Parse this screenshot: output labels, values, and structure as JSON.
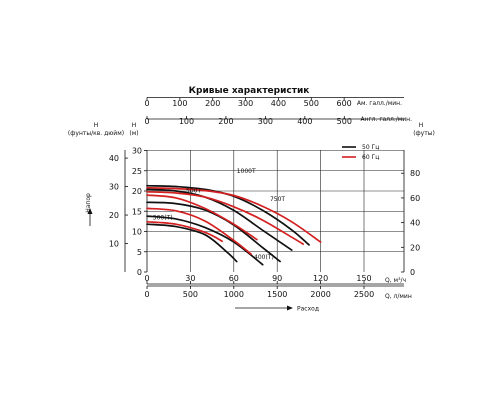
{
  "chart_data": {
    "type": "line",
    "title": "Кривые характеристик",
    "top_axes": [
      {
        "unit": "Ам. галл./мин.",
        "ticks": [
          "0",
          "100",
          "200",
          "300",
          "400",
          "500",
          "600"
        ],
        "values": [
          0,
          100,
          200,
          300,
          400,
          500,
          600
        ]
      },
      {
        "unit": "Англ. галл./мин.",
        "ticks": [
          "0",
          "100",
          "200",
          "300",
          "400",
          "500"
        ],
        "values": [
          0,
          100,
          200,
          300,
          400,
          500
        ]
      }
    ],
    "bottom_axes": [
      {
        "unit": "Q, м³/ч",
        "ticks": [
          "0",
          "30",
          "60",
          "90",
          "120",
          "150"
        ],
        "values": [
          0,
          30,
          60,
          90,
          120,
          150
        ]
      },
      {
        "unit": "Q, л/мин",
        "ticks": [
          "0",
          "500",
          "1000",
          "1500",
          "2000",
          "2500"
        ],
        "values": [
          0,
          500,
          1000,
          1500,
          2000,
          2500
        ]
      }
    ],
    "bottom_caption": "Расход",
    "left_axes": [
      {
        "unit_line1": "H",
        "unit_line2": "(фунты/кв. дюйм)",
        "ticks": [
          "10",
          "20",
          "30",
          "40"
        ],
        "values": [
          10,
          20,
          30,
          40
        ]
      },
      {
        "unit_line1": "H",
        "unit_line2": "(м)",
        "ticks": [
          "0",
          "5",
          "10",
          "15",
          "20",
          "25",
          "30"
        ],
        "values": [
          0,
          5,
          10,
          15,
          20,
          25,
          30
        ]
      }
    ],
    "left_caption": "Напор",
    "right_axis": {
      "unit_line1": "H",
      "unit_line2": "(футы)",
      "ticks": [
        "0",
        "20",
        "40",
        "60",
        "80"
      ],
      "values": [
        0,
        20,
        40,
        60,
        80
      ]
    },
    "legend": {
      "placement": "top-right",
      "items": [
        {
          "label": "50 Гц",
          "color": "#111111"
        },
        {
          "label": "60 Гц",
          "color": "#d42020"
        }
      ]
    },
    "x_unit": "Q, м³/ч",
    "y_unit": "H, м",
    "xlim": [
      0,
      150
    ],
    "ylim": [
      0,
      33
    ],
    "curve_labels": [
      {
        "text": "1000T",
        "x": 62,
        "y": 24.5
      },
      {
        "text": "750T",
        "x": 85,
        "y": 17.5
      },
      {
        "text": "500T",
        "x": 27,
        "y": 19.6
      },
      {
        "text": "300(T)",
        "x": 4,
        "y": 13
      },
      {
        "text": "400(T)",
        "x": 74,
        "y": 3.2
      }
    ],
    "series": [
      {
        "name": "1000T",
        "freq": "50 Гц",
        "color": "#111111",
        "points": [
          [
            0,
            21.3
          ],
          [
            20,
            21.1
          ],
          [
            40,
            20.4
          ],
          [
            60,
            18.7
          ],
          [
            80,
            15.2
          ],
          [
            100,
            10.4
          ],
          [
            112,
            6.7
          ]
        ]
      },
      {
        "name": "1000T",
        "freq": "60 Гц",
        "color": "#d42020",
        "points": [
          [
            0,
            20.8
          ],
          [
            20,
            20.6
          ],
          [
            40,
            20.1
          ],
          [
            60,
            18.9
          ],
          [
            80,
            16.2
          ],
          [
            100,
            12.4
          ],
          [
            120,
            7.4
          ]
        ]
      },
      {
        "name": "750T",
        "freq": "50 Гц",
        "color": "#111111",
        "points": [
          [
            0,
            20.4
          ],
          [
            20,
            20.0
          ],
          [
            40,
            18.5
          ],
          [
            60,
            15.2
          ],
          [
            80,
            10.3
          ],
          [
            100,
            5.4
          ]
        ]
      },
      {
        "name": "750T",
        "freq": "60 Гц",
        "color": "#d42020",
        "points": [
          [
            0,
            19.8
          ],
          [
            20,
            19.5
          ],
          [
            40,
            18.5
          ],
          [
            60,
            16.1
          ],
          [
            80,
            12.8
          ],
          [
            100,
            8.6
          ],
          [
            108,
            6.9
          ]
        ]
      },
      {
        "name": "500T",
        "freq": "50 Гц",
        "color": "#111111",
        "points": [
          [
            0,
            17.2
          ],
          [
            20,
            16.9
          ],
          [
            40,
            15.3
          ],
          [
            60,
            11.6
          ],
          [
            80,
            6.0
          ],
          [
            92,
            2.6
          ]
        ]
      },
      {
        "name": "500T",
        "freq": "60 Гц",
        "color": "#d42020",
        "points": [
          [
            0,
            19.0
          ],
          [
            20,
            18.3
          ],
          [
            40,
            15.7
          ],
          [
            60,
            11.8
          ],
          [
            76,
            8.0
          ]
        ]
      },
      {
        "name": "400(T)",
        "freq": "50 Гц",
        "color": "#111111",
        "points": [
          [
            0,
            13.8
          ],
          [
            20,
            13.1
          ],
          [
            40,
            11.0
          ],
          [
            60,
            7.4
          ],
          [
            80,
            1.8
          ]
        ]
      },
      {
        "name": "400(T)",
        "freq": "60 Гц",
        "color": "#d42020",
        "points": [
          [
            0,
            15.7
          ],
          [
            20,
            15.1
          ],
          [
            40,
            12.6
          ],
          [
            60,
            7.8
          ],
          [
            72,
            4.4
          ]
        ]
      },
      {
        "name": "300(T)",
        "freq": "50 Гц",
        "color": "#111111",
        "points": [
          [
            0,
            11.8
          ],
          [
            20,
            11.2
          ],
          [
            40,
            9.2
          ],
          [
            55,
            5.0
          ],
          [
            62,
            2.6
          ]
        ]
      },
      {
        "name": "300(T)",
        "freq": "60 Гц",
        "color": "#d42020",
        "points": [
          [
            0,
            12.4
          ],
          [
            20,
            11.8
          ],
          [
            40,
            9.8
          ],
          [
            52,
            7.6
          ]
        ]
      }
    ]
  }
}
